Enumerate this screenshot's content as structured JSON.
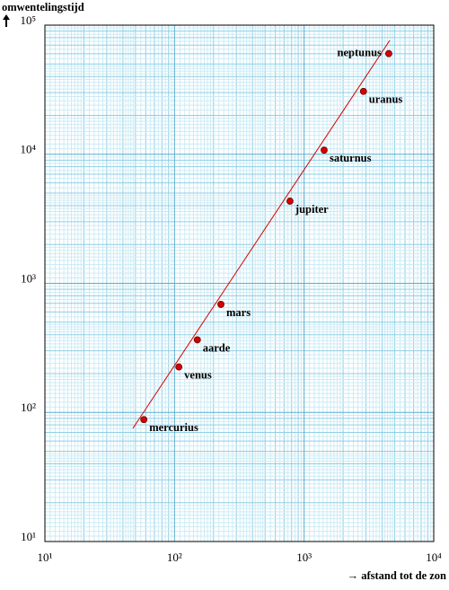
{
  "chart_data": {
    "type": "scatter",
    "x_label": "→ afstand tot de zon",
    "y_label": "omwentelingstijd",
    "log_x": true,
    "log_y": true,
    "grid": true,
    "xlim": [
      10,
      10000
    ],
    "ylim": [
      10,
      100000
    ],
    "xticks": [
      {
        "value": 10,
        "label": "10¹"
      },
      {
        "value": 100,
        "label": "10²"
      },
      {
        "value": 1000,
        "label": "10³"
      },
      {
        "value": 10000,
        "label": "10⁴"
      }
    ],
    "yticks": [
      {
        "value": 10,
        "label": "10¹"
      },
      {
        "value": 100,
        "label": "10²"
      },
      {
        "value": 1000,
        "label": "10³"
      },
      {
        "value": 10000,
        "label": "10⁴"
      },
      {
        "value": 100000,
        "label": "10⁵"
      }
    ],
    "color": "#d40000",
    "labels": [
      "mercurius",
      "venus",
      "aarde",
      "mars",
      "jupiter",
      "saturnus",
      "uranus",
      "neptunus"
    ],
    "x": [
      58,
      108,
      150,
      228,
      778,
      1427,
      2870,
      4497
    ],
    "y": [
      88,
      225,
      365,
      687,
      4333,
      10759,
      30687,
      60190
    ]
  }
}
